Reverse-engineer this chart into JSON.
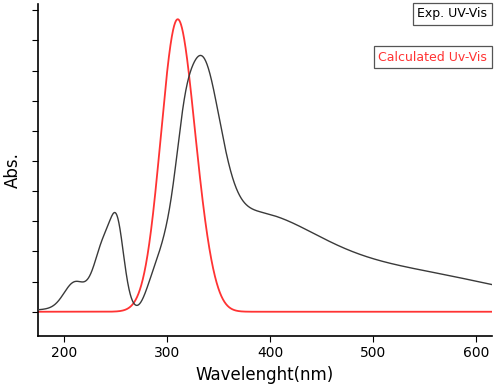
{
  "title": "",
  "xlabel": "Wavelenght(nm)",
  "ylabel": "Abs.",
  "xlim": [
    175,
    615
  ],
  "ylim": [
    -0.08,
    1.02
  ],
  "xticks": [
    200,
    300,
    400,
    500,
    600
  ],
  "legend_exp": "Exp. UV-Vis",
  "legend_calc": "Calculated Uv-Vis",
  "exp_color": "#3a3a3a",
  "calc_color": "#ff3333",
  "background": "#ffffff",
  "xlabel_fontsize": 12,
  "ylabel_fontsize": 12
}
